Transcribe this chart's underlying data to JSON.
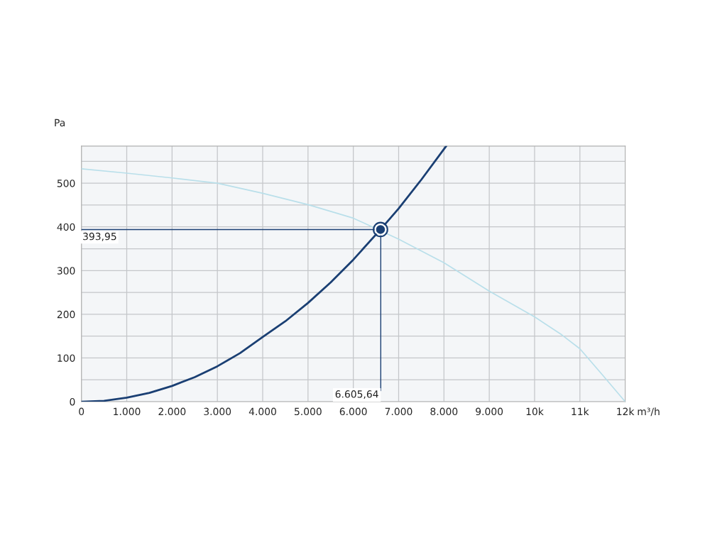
{
  "chart_data": {
    "type": "line",
    "xlabel": "m³/h",
    "ylabel": "Pa",
    "xlim": [
      0,
      12000
    ],
    "ylim": [
      0,
      585
    ],
    "xticks": [
      0,
      {
        "value": 1000,
        "label": "1.000"
      },
      {
        "value": 2000,
        "label": "2.000"
      },
      {
        "value": 3000,
        "label": "3.000"
      },
      {
        "value": 4000,
        "label": "4.000"
      },
      {
        "value": 5000,
        "label": "5.000"
      },
      {
        "value": 6000,
        "label": "6.000"
      },
      {
        "value": 7000,
        "label": "7.000"
      },
      {
        "value": 8000,
        "label": "8.000"
      },
      {
        "value": 9000,
        "label": "9.000"
      },
      {
        "value": 10000,
        "label": "10k"
      },
      {
        "value": 11000,
        "label": "11k"
      },
      {
        "value": 12000,
        "label": "12k"
      }
    ],
    "yticks": [
      0,
      {
        "value": 50,
        "label": null
      },
      100,
      {
        "value": 150,
        "label": null
      },
      200,
      {
        "value": 250,
        "label": null
      },
      300,
      {
        "value": 350,
        "label": null
      },
      400,
      {
        "value": 450,
        "label": null
      },
      500,
      {
        "value": 550,
        "label": null
      }
    ],
    "grid": true,
    "marker": "none",
    "line_style": "solid",
    "series": [
      {
        "color": "#b9dfea",
        "x": [
          0,
          1000,
          2000,
          3000,
          4000,
          5000,
          6000,
          7000,
          8000,
          9000,
          10000,
          10600,
          11000,
          11500,
          12000
        ],
        "values": [
          533,
          523,
          512,
          500,
          477,
          451,
          420,
          372,
          318,
          253,
          194,
          153,
          121,
          61,
          0
        ]
      },
      {
        "color": "#1a3f73",
        "x": [
          0,
          500,
          1000,
          1500,
          2000,
          2500,
          3000,
          3500,
          4000,
          4500,
          5000,
          5500,
          6000,
          6600,
          7000,
          7500,
          8000,
          8050
        ],
        "values": [
          0,
          2,
          9,
          20,
          36,
          56,
          81,
          111,
          148,
          184,
          226,
          273,
          325,
          394,
          442,
          508,
          578,
          585
        ]
      },
      {
        "type": "scatter",
        "marker": "circle",
        "color": "#1a3f73",
        "x": [
          6600
        ],
        "values": [
          394
        ]
      }
    ],
    "ref_lines": [
      {
        "axis": "y",
        "value": 393.95,
        "label": "393,95",
        "color": "#1a3f73"
      },
      {
        "axis": "x",
        "value": 6605.64,
        "label": "6.605,64",
        "color": "#1a3f73"
      }
    ]
  }
}
